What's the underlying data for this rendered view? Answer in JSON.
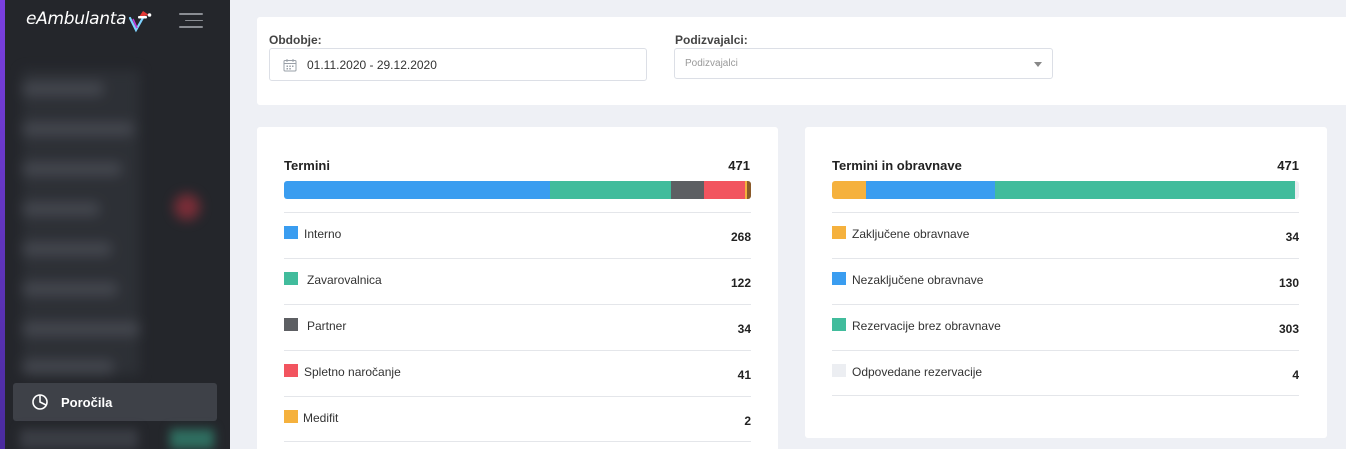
{
  "app": {
    "title": "eAmbulanta"
  },
  "sidebar": {
    "active_item": {
      "label": "Poročila",
      "icon": "pie-chart-icon"
    }
  },
  "filters": {
    "period_label": "Obdobje:",
    "period_value": "01.11.2020 - 29.12.2020",
    "providers_label": "Podizvajalci:",
    "providers_placeholder": "Podizvajalci"
  },
  "colors": {
    "blue": "#3a9df0",
    "teal": "#41bc9c",
    "dark": "#5d5f63",
    "red": "#f2545f",
    "orange": "#f5b13d",
    "light": "#eceef2",
    "brown": "#8a5a2a"
  },
  "termini": {
    "title": "Termini",
    "total": "471",
    "items": [
      {
        "label": "Interno",
        "value": "268",
        "share": 268,
        "color": "#3a9df0"
      },
      {
        "label": "Zavarovalnica",
        "value": "122",
        "share": 122,
        "color": "#41bc9c"
      },
      {
        "label": "Partner",
        "value": "34",
        "share": 34,
        "color": "#5d5f63"
      },
      {
        "label": "Spletno naročanje",
        "value": "41",
        "share": 41,
        "color": "#f2545f"
      },
      {
        "label": "Medifit",
        "value": "2",
        "share": 2,
        "color": "#f5b13d"
      }
    ],
    "extra_share": {
      "share": 4,
      "color": "#8a5a2a"
    }
  },
  "obravnave": {
    "title": "Termini in obravnave",
    "total": "471",
    "items": [
      {
        "label": "Zaključene obravnave",
        "value": "34",
        "share": 34,
        "color": "#f5b13d"
      },
      {
        "label": "Nezaključene obravnave",
        "value": "130",
        "share": 130,
        "color": "#3a9df0"
      },
      {
        "label": "Rezervacije brez obravnave",
        "value": "303",
        "share": 303,
        "color": "#41bc9c"
      },
      {
        "label": "Odpovedane rezervacije",
        "value": "4",
        "share": 4,
        "color": "#eceef2"
      }
    ]
  }
}
